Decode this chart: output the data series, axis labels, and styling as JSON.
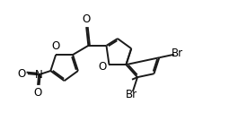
{
  "bg_color": "#ffffff",
  "bond_color": "#1a1a1a",
  "bond_width": 1.4,
  "font_size": 8.5,
  "xlim": [
    0,
    10.5
  ],
  "ylim": [
    0,
    6.5
  ],
  "figsize": [
    2.65,
    1.45
  ],
  "dpi": 100
}
